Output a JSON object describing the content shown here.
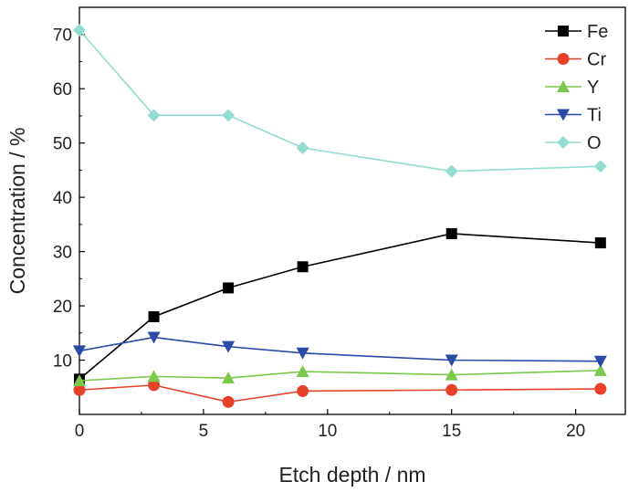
{
  "chart_data": {
    "type": "line",
    "title": "",
    "xlabel": "Etch depth / nm",
    "ylabel": "Concentration / %",
    "xlim": [
      0,
      22
    ],
    "ylim": [
      0,
      75
    ],
    "x_ticks": [
      0,
      5,
      10,
      15,
      20
    ],
    "y_ticks": [
      10,
      20,
      30,
      40,
      50,
      60,
      70
    ],
    "x_tick_labels": [
      "0",
      "5",
      "10",
      "15",
      "20"
    ],
    "y_tick_labels": [
      "10",
      "20",
      "30",
      "40",
      "50",
      "60",
      "70"
    ],
    "grid": false,
    "legend_position": "top-right",
    "x": [
      0,
      3,
      6,
      9,
      15,
      21
    ],
    "series": [
      {
        "name": "Fe",
        "color": "#000000",
        "marker": "square",
        "values": [
          6.5,
          18.0,
          23.3,
          27.2,
          33.3,
          31.6
        ]
      },
      {
        "name": "Cr",
        "color": "#e8412a",
        "marker": "circle",
        "values": [
          4.5,
          5.4,
          2.3,
          4.3,
          4.5,
          4.7
        ]
      },
      {
        "name": "Y",
        "color": "#7cc84a",
        "marker": "triangle-up",
        "values": [
          6.2,
          7.0,
          6.7,
          7.9,
          7.3,
          8.1
        ]
      },
      {
        "name": "Ti",
        "color": "#2b4aa8",
        "marker": "triangle-down",
        "values": [
          11.7,
          14.2,
          12.5,
          11.3,
          10.0,
          9.8
        ]
      },
      {
        "name": "O",
        "color": "#92dcd0",
        "marker": "diamond",
        "values": [
          70.8,
          55.1,
          55.1,
          49.1,
          44.8,
          45.7
        ]
      }
    ]
  }
}
